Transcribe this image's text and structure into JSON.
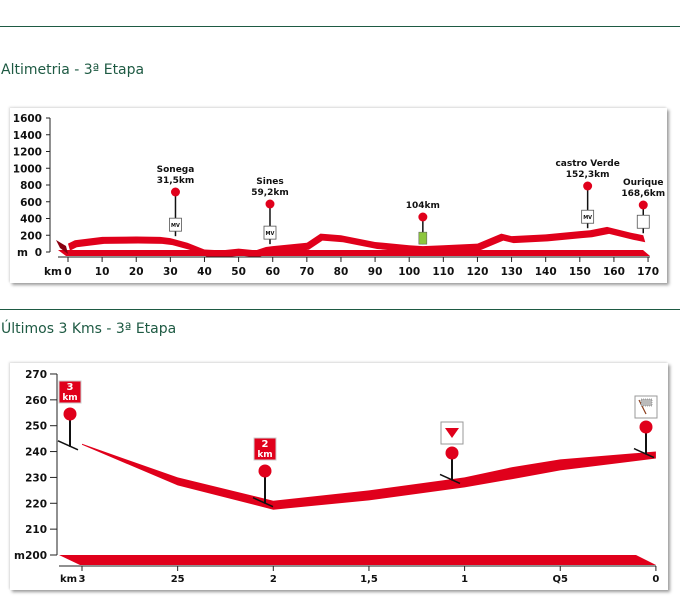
{
  "section1": {
    "title": "Altimetria - 3ª Etapa"
  },
  "section2": {
    "title": "Últimos 3 Kms - 3ª Etapa"
  },
  "colors": {
    "profile": "#e0001b",
    "heading": "#1e5a43",
    "feed_zone": "#8dc63f"
  },
  "chart_data": [
    {
      "type": "area",
      "y_unit": "m",
      "x_unit": "km",
      "ylim": [
        0,
        1600
      ],
      "xlim": [
        0,
        170
      ],
      "y_ticks": [
        "1600",
        "1400",
        "1200",
        "1000",
        "800",
        "600",
        "400",
        "200",
        "0"
      ],
      "x_ticks": [
        "0",
        "10",
        "20",
        "30",
        "40",
        "50",
        "60",
        "70",
        "80",
        "90",
        "100",
        "110",
        "120",
        "130",
        "140",
        "150",
        "160",
        "170"
      ],
      "x": [
        0,
        2,
        10,
        20,
        27,
        30,
        35,
        40,
        45,
        50,
        55,
        58,
        60,
        70,
        74,
        80,
        90,
        100,
        104,
        110,
        120,
        127,
        130,
        140,
        150,
        153,
        158,
        165,
        168.6
      ],
      "y": [
        100,
        140,
        180,
        185,
        180,
        165,
        110,
        30,
        20,
        40,
        20,
        60,
        70,
        110,
        220,
        200,
        120,
        80,
        70,
        80,
        100,
        220,
        190,
        210,
        250,
        260,
        300,
        230,
        200
      ],
      "markers": [
        {
          "name": "Sonega",
          "km": "31,5km",
          "x": 31.5,
          "icon": "MV"
        },
        {
          "name": "Sines",
          "km": "59,2km",
          "x": 59.2,
          "icon": "MV"
        },
        {
          "name": "",
          "km": "104km",
          "x": 104,
          "icon": "feed-zone"
        },
        {
          "name": "castro Verde",
          "km": "152,3km",
          "x": 152.3,
          "icon": "MV"
        },
        {
          "name": "Ourique",
          "km": "168,6km",
          "x": 168.6,
          "icon": "finish"
        }
      ],
      "grid": false
    },
    {
      "type": "area",
      "y_unit": "m",
      "x_unit": "km",
      "ylim": [
        200,
        270
      ],
      "xlim": [
        3,
        0
      ],
      "y_ticks": [
        "270",
        "260",
        "250",
        "240",
        "230",
        "220",
        "210",
        "200"
      ],
      "x_ticks": [
        "3",
        "25",
        "2",
        "1,5",
        "1",
        "Q5",
        "0"
      ],
      "x": [
        3,
        2.5,
        2,
        1.5,
        1,
        0.75,
        0.5,
        0
      ],
      "y": [
        243,
        230,
        221,
        225,
        230,
        234,
        237,
        240
      ],
      "markers": [
        {
          "label": "3",
          "unit": "km",
          "x": 3,
          "icon": "km-sign"
        },
        {
          "label": "2",
          "unit": "km",
          "x": 2,
          "icon": "km-sign"
        },
        {
          "label": "",
          "x": 1,
          "icon": "flamme-rouge-triangle"
        },
        {
          "label": "",
          "x": 0,
          "icon": "finish-flag"
        }
      ],
      "grid": false
    }
  ]
}
